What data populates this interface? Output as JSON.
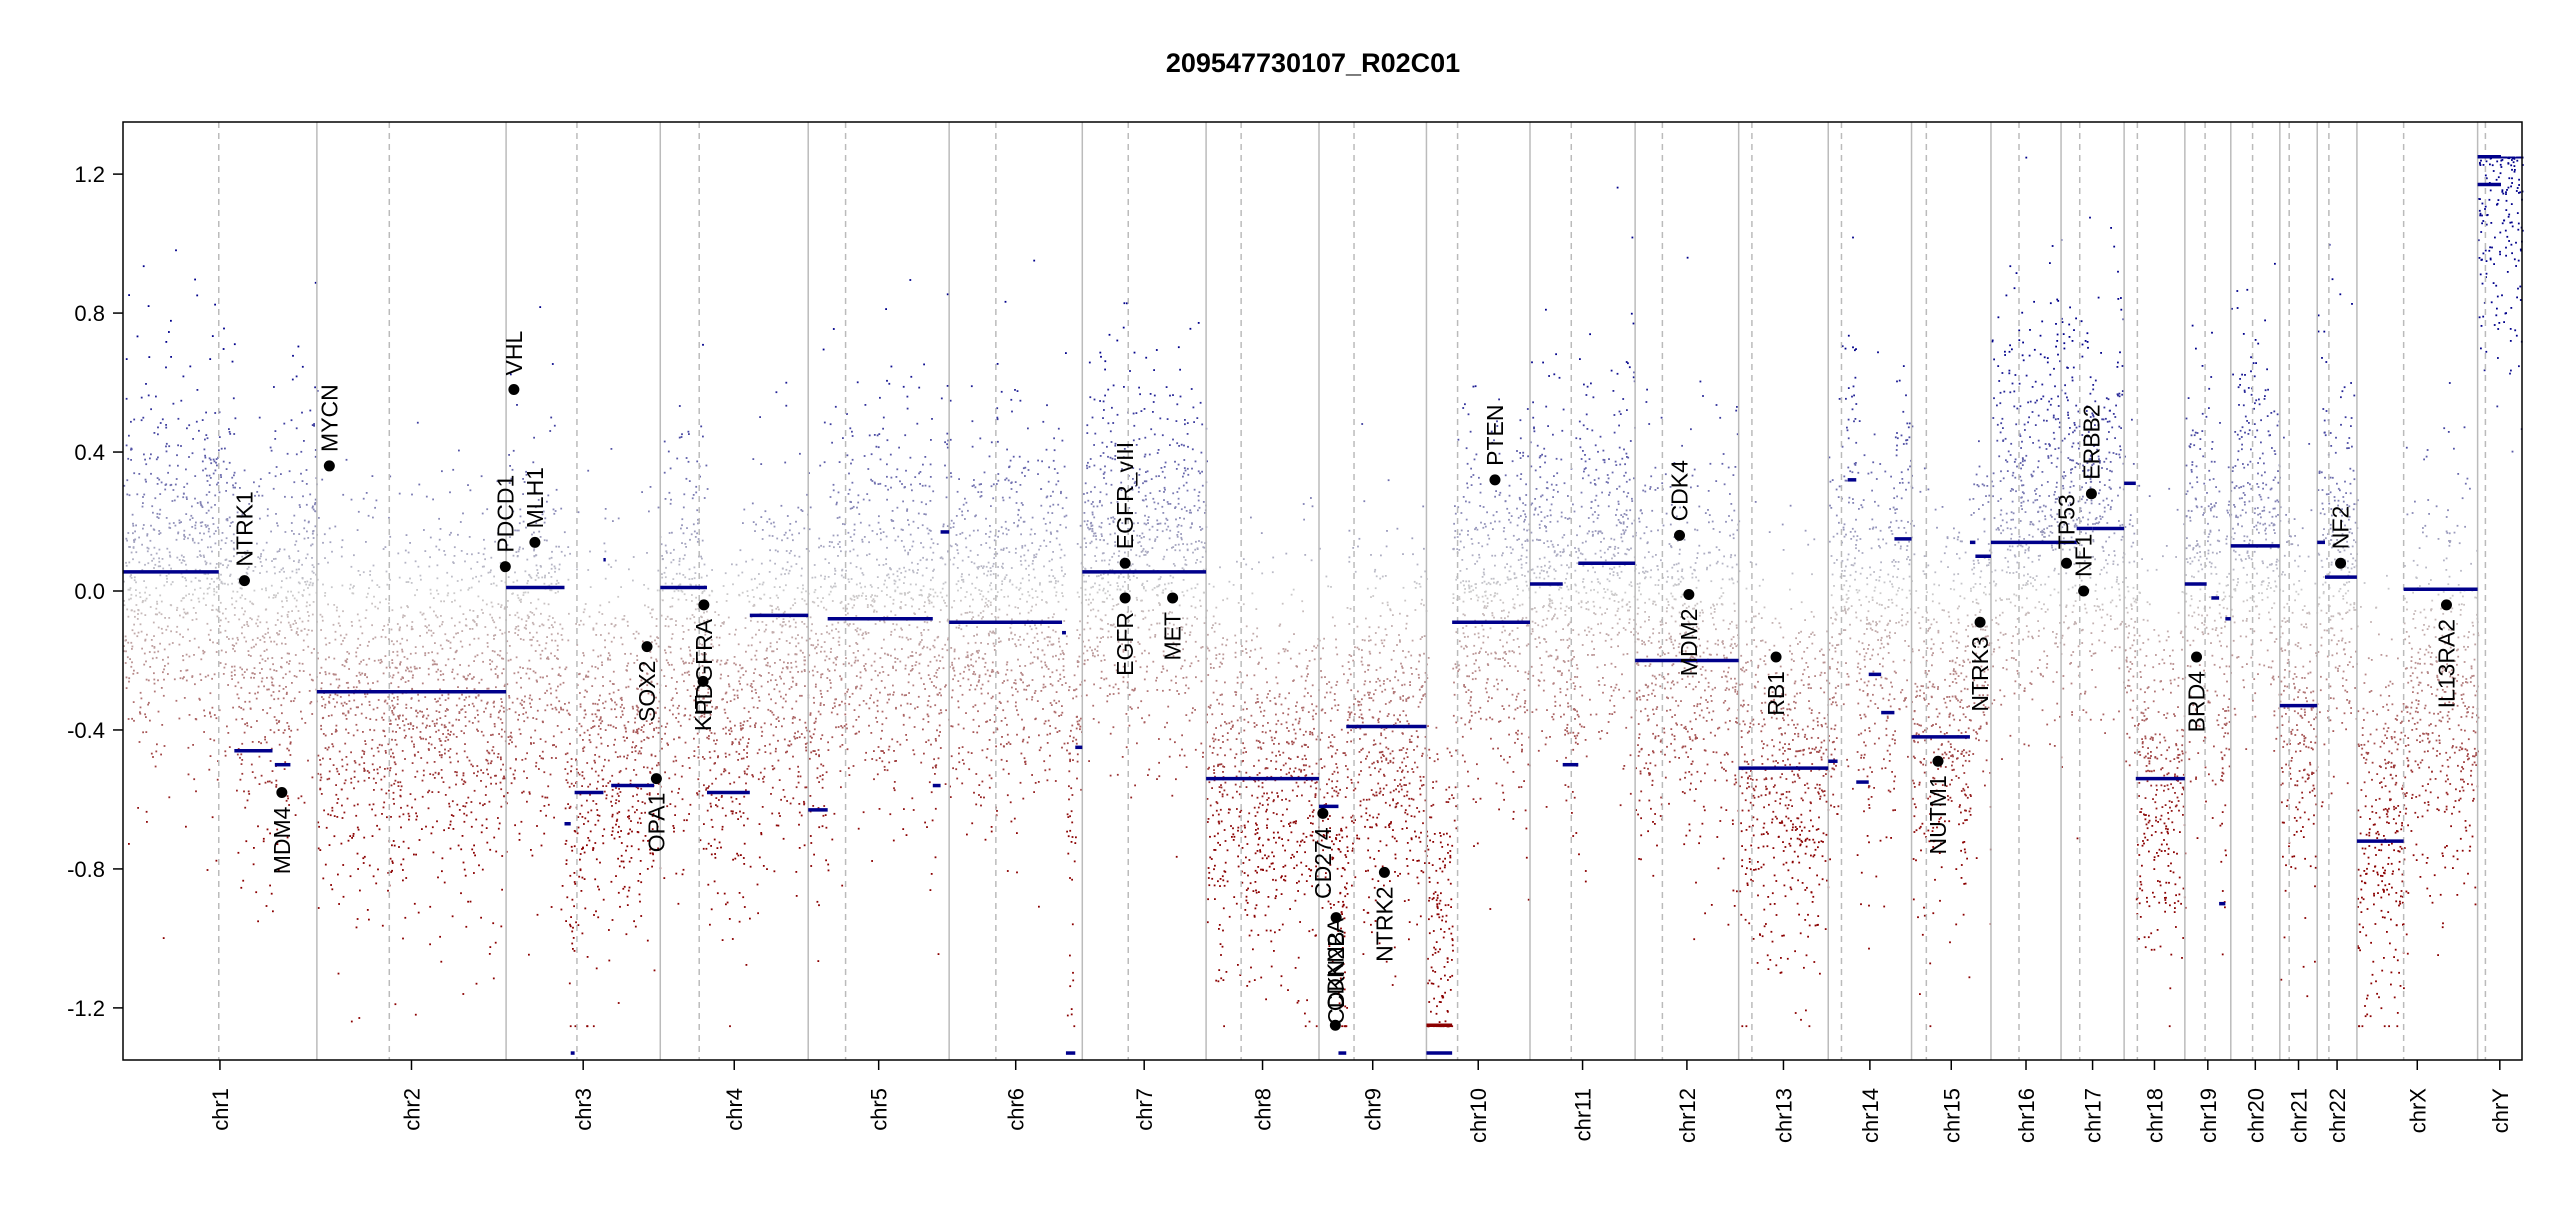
{
  "chart_data": {
    "type": "scatter",
    "title": "209547730107_R02C01",
    "xlabel": "",
    "ylabel": "",
    "ylim": [
      -1.35,
      1.35
    ],
    "yticks": [
      -1.2,
      -0.8,
      -0.4,
      0.0,
      0.4,
      0.8,
      1.2
    ],
    "ytick_labels": [
      "-1.2",
      "-0.8",
      "-0.4",
      "0.0",
      "0.4",
      "0.8",
      "1.2"
    ],
    "grid": false,
    "legend": "none",
    "colors": {
      "gain": "#00008B",
      "loss": "#8B0000",
      "neutral": "#CCCCCC",
      "segment": "#00008B",
      "segment_low": "#8B0000",
      "gene_dot": "#000000",
      "chrom_border": "#BBBBBB",
      "centromere": "#BBBBBB"
    },
    "chromosomes": [
      {
        "name": "chr1",
        "size": 249,
        "cen": 123,
        "mean": 0.05,
        "segments": [
          {
            "s": 0,
            "e": 123,
            "v": 0.055
          },
          {
            "s": 143,
            "e": 192,
            "v": -0.46
          },
          {
            "s": 195,
            "e": 215,
            "v": -0.5
          }
        ]
      },
      {
        "name": "chr2",
        "size": 243,
        "cen": 93,
        "mean": -0.35,
        "segments": [
          {
            "s": 0,
            "e": 243,
            "v": -0.29
          }
        ]
      },
      {
        "name": "chr3",
        "size": 198,
        "cen": 91,
        "mean": -0.35,
        "segments": [
          {
            "s": 0,
            "e": 75,
            "v": 0.01
          },
          {
            "s": 75,
            "e": 83,
            "v": -0.67
          },
          {
            "s": 83,
            "e": 88,
            "v": -1.33
          },
          {
            "s": 88,
            "e": 125,
            "v": -0.58
          },
          {
            "s": 125,
            "e": 128,
            "v": 0.09
          },
          {
            "s": 135,
            "e": 190,
            "v": -0.56
          }
        ]
      },
      {
        "name": "chr4",
        "size": 190,
        "cen": 50,
        "mean": -0.3,
        "segments": [
          {
            "s": 0,
            "e": 60,
            "v": 0.01
          },
          {
            "s": 60,
            "e": 115,
            "v": -0.58
          },
          {
            "s": 115,
            "e": 190,
            "v": -0.07
          }
        ]
      },
      {
        "name": "chr5",
        "size": 181,
        "cen": 48,
        "mean": -0.05,
        "segments": [
          {
            "s": 0,
            "e": 25,
            "v": -0.63
          },
          {
            "s": 25,
            "e": 160,
            "v": -0.08
          },
          {
            "s": 160,
            "e": 170,
            "v": -0.56
          },
          {
            "s": 170,
            "e": 181,
            "v": 0.17
          }
        ]
      },
      {
        "name": "chr6",
        "size": 171,
        "cen": 60,
        "mean": -0.05,
        "segments": [
          {
            "s": 0,
            "e": 145,
            "v": -0.09
          },
          {
            "s": 145,
            "e": 150,
            "v": -0.12
          },
          {
            "s": 150,
            "e": 162,
            "v": -1.33
          },
          {
            "s": 162,
            "e": 171,
            "v": -0.45
          }
        ]
      },
      {
        "name": "chr7",
        "size": 159,
        "cen": 59,
        "mean": 0.15,
        "segments": [
          {
            "s": 0,
            "e": 159,
            "v": 0.055
          }
        ]
      },
      {
        "name": "chr8",
        "size": 145,
        "cen": 45,
        "mean": -0.55,
        "segments": [
          {
            "s": 0,
            "e": 145,
            "v": -0.54
          }
        ]
      },
      {
        "name": "chr9",
        "size": 138,
        "cen": 45,
        "mean": -0.45,
        "segments": [
          {
            "s": 0,
            "e": 25,
            "v": -0.62
          },
          {
            "s": 25,
            "e": 35,
            "v": -1.33
          },
          {
            "s": 35,
            "e": 138,
            "v": -0.39
          }
        ]
      },
      {
        "name": "chr10",
        "size": 133,
        "cen": 40,
        "mean": -0.05,
        "segments": [
          {
            "s": 0,
            "e": 33,
            "v": -1.25
          },
          {
            "s": 0,
            "e": 33,
            "v": -1.33
          },
          {
            "s": 33,
            "e": 133,
            "v": -0.09
          }
        ]
      },
      {
        "name": "chr11",
        "size": 135,
        "cen": 53,
        "mean": 0.1,
        "segments": [
          {
            "s": 0,
            "e": 42,
            "v": 0.02
          },
          {
            "s": 42,
            "e": 62,
            "v": -0.5
          },
          {
            "s": 62,
            "e": 135,
            "v": 0.08
          }
        ]
      },
      {
        "name": "chr12",
        "size": 133,
        "cen": 35,
        "mean": -0.15,
        "segments": [
          {
            "s": 0,
            "e": 133,
            "v": -0.2
          }
        ]
      },
      {
        "name": "chr13",
        "size": 115,
        "cen": 17,
        "mean": -0.5,
        "segments": [
          {
            "s": 0,
            "e": 115,
            "v": -0.51
          }
        ]
      },
      {
        "name": "chr14",
        "size": 107,
        "cen": 17,
        "mean": 0.1,
        "segments": [
          {
            "s": 0,
            "e": 12,
            "v": -0.49
          },
          {
            "s": 25,
            "e": 36,
            "v": 0.32
          },
          {
            "s": 36,
            "e": 52,
            "v": -0.55
          },
          {
            "s": 52,
            "e": 68,
            "v": -0.24
          },
          {
            "s": 68,
            "e": 85,
            "v": -0.35
          },
          {
            "s": 85,
            "e": 107,
            "v": 0.15
          }
        ]
      },
      {
        "name": "chr15",
        "size": 102,
        "cen": 19,
        "mean": -0.3,
        "segments": [
          {
            "s": 0,
            "e": 75,
            "v": -0.42
          },
          {
            "s": 75,
            "e": 82,
            "v": 0.14
          },
          {
            "s": 82,
            "e": 102,
            "v": 0.1
          }
        ]
      },
      {
        "name": "chr16",
        "size": 90,
        "cen": 36,
        "mean": 0.3,
        "segments": [
          {
            "s": 0,
            "e": 90,
            "v": 0.14
          }
        ]
      },
      {
        "name": "chr17",
        "size": 81,
        "cen": 24,
        "mean": 0.3,
        "segments": [
          {
            "s": 0,
            "e": 20,
            "v": 0.14
          },
          {
            "s": 20,
            "e": 40,
            "v": 0.18
          },
          {
            "s": 40,
            "e": 81,
            "v": 0.18
          }
        ]
      },
      {
        "name": "chr18",
        "size": 78,
        "cen": 17,
        "mean": -0.55,
        "segments": [
          {
            "s": 0,
            "e": 15,
            "v": 0.31
          },
          {
            "s": 15,
            "e": 78,
            "v": -0.54
          }
        ]
      },
      {
        "name": "chr19",
        "size": 59,
        "cen": 26,
        "mean": 0.05,
        "segments": [
          {
            "s": 0,
            "e": 28,
            "v": 0.02
          },
          {
            "s": 34,
            "e": 44,
            "v": -0.02
          },
          {
            "s": 44,
            "e": 52,
            "v": -0.9
          },
          {
            "s": 52,
            "e": 59,
            "v": -0.08
          }
        ]
      },
      {
        "name": "chr20",
        "size": 63,
        "cen": 28,
        "mean": 0.2,
        "segments": [
          {
            "s": 0,
            "e": 63,
            "v": 0.13
          }
        ]
      },
      {
        "name": "chr21",
        "size": 48,
        "cen": 12,
        "mean": -0.35,
        "segments": [
          {
            "s": 0,
            "e": 48,
            "v": -0.33
          }
        ]
      },
      {
        "name": "chr22",
        "size": 51,
        "cen": 15,
        "mean": 0.1,
        "segments": [
          {
            "s": 0,
            "e": 10,
            "v": 0.14
          },
          {
            "s": 10,
            "e": 51,
            "v": 0.04
          }
        ]
      },
      {
        "name": "chrX",
        "size": 155,
        "cen": 60,
        "mean": -0.65,
        "segments": [
          {
            "s": 0,
            "e": 60,
            "v": -0.72
          },
          {
            "s": 60,
            "e": 155,
            "v": 0.005
          }
        ]
      },
      {
        "name": "chrY",
        "size": 57,
        "cen": 10,
        "mean": 1.2,
        "segments": [
          {
            "s": 0,
            "e": 30,
            "v": 1.25
          },
          {
            "s": 0,
            "e": 30,
            "v": 1.17
          }
        ]
      }
    ],
    "annotations": [
      {
        "gene": "NTRK1",
        "chr": "chr1",
        "pos": 156,
        "value": 0.03,
        "label_side": "above"
      },
      {
        "gene": "MDM4",
        "chr": "chr1",
        "pos": 204,
        "value": -0.58,
        "label_side": "below"
      },
      {
        "gene": "MYCN",
        "chr": "chr2",
        "pos": 16,
        "value": 0.36,
        "label_side": "above"
      },
      {
        "gene": "PDCD1",
        "chr": "chr2",
        "pos": 242,
        "value": 0.07,
        "label_side": "above"
      },
      {
        "gene": "VHL",
        "chr": "chr3",
        "pos": 10,
        "value": 0.58,
        "label_side": "above"
      },
      {
        "gene": "MLH1",
        "chr": "chr3",
        "pos": 37,
        "value": 0.14,
        "label_side": "above"
      },
      {
        "gene": "SOX2",
        "chr": "chr3",
        "pos": 181,
        "value": -0.16,
        "label_side": "below"
      },
      {
        "gene": "OPA1",
        "chr": "chr3",
        "pos": 193,
        "value": -0.54,
        "label_side": "below"
      },
      {
        "gene": "KIT",
        "chr": "chr4",
        "pos": 55,
        "value": -0.26,
        "label_side": "below"
      },
      {
        "gene": "PDGFRA",
        "chr": "chr4",
        "pos": 56,
        "value": -0.04,
        "label_side": "below"
      },
      {
        "gene": "EGFR_vIII",
        "chr": "chr7",
        "pos": 55,
        "value": 0.08,
        "label_side": "above"
      },
      {
        "gene": "EGFR",
        "chr": "chr7",
        "pos": 55,
        "value": -0.02,
        "label_side": "below"
      },
      {
        "gene": "MET",
        "chr": "chr7",
        "pos": 116,
        "value": -0.02,
        "label_side": "below"
      },
      {
        "gene": "CD274",
        "chr": "chr9",
        "pos": 5,
        "value": -0.64,
        "label_side": "below"
      },
      {
        "gene": "CDKN2A",
        "chr": "chr9",
        "pos": 21,
        "value": -1.25,
        "label_side": "above"
      },
      {
        "gene": "CDKN2B",
        "chr": "chr9",
        "pos": 22,
        "value": -0.94,
        "label_side": "below"
      },
      {
        "gene": "NTRK2",
        "chr": "chr9",
        "pos": 84,
        "value": -0.81,
        "label_side": "below"
      },
      {
        "gene": "PTEN",
        "chr": "chr10",
        "pos": 88,
        "value": 0.32,
        "label_side": "above"
      },
      {
        "gene": "CDK4",
        "chr": "chr12",
        "pos": 57,
        "value": 0.16,
        "label_side": "above"
      },
      {
        "gene": "MDM2",
        "chr": "chr12",
        "pos": 69,
        "value": -0.01,
        "label_side": "below"
      },
      {
        "gene": "RB1",
        "chr": "chr13",
        "pos": 48,
        "value": -0.19,
        "label_side": "below"
      },
      {
        "gene": "NUTM1",
        "chr": "chr15",
        "pos": 34,
        "value": -0.49,
        "label_side": "below"
      },
      {
        "gene": "NTRK3",
        "chr": "chr15",
        "pos": 88,
        "value": -0.09,
        "label_side": "below"
      },
      {
        "gene": "TP53",
        "chr": "chr17",
        "pos": 7,
        "value": 0.08,
        "label_side": "above"
      },
      {
        "gene": "NF1",
        "chr": "chr17",
        "pos": 29,
        "value": 0.0,
        "label_side": "above"
      },
      {
        "gene": "ERBB2",
        "chr": "chr17",
        "pos": 39,
        "value": 0.28,
        "label_side": "above"
      },
      {
        "gene": "BRD4",
        "chr": "chr19",
        "pos": 15,
        "value": -0.19,
        "label_side": "below"
      },
      {
        "gene": "NF2",
        "chr": "chr22",
        "pos": 30,
        "value": 0.08,
        "label_side": "above"
      },
      {
        "gene": "IL13RA2",
        "chr": "chrX",
        "pos": 115,
        "value": -0.04,
        "label_side": "below"
      }
    ]
  }
}
